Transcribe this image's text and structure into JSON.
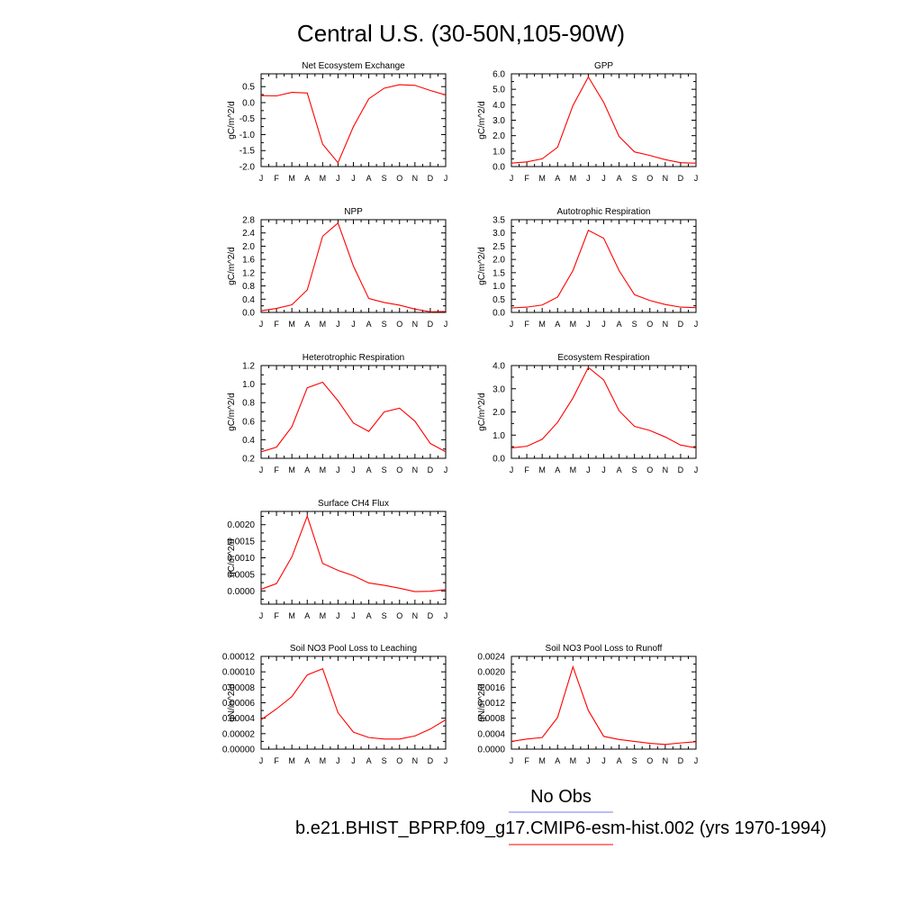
{
  "figure": {
    "title": "Central U.S. (30-50N,105-90W)",
    "month_labels": [
      "J",
      "F",
      "M",
      "A",
      "M",
      "J",
      "J",
      "A",
      "S",
      "O",
      "N",
      "D",
      "J"
    ],
    "legend": {
      "obs_label": "No Obs",
      "obs_color": "#7b7bf0",
      "model_label": "b.e21.BHIST_BPRP.f09_g17.CMIP6-esm-hist.002 (yrs 1970-1994)",
      "model_color": "#ff0000"
    }
  },
  "chart_data": [
    {
      "type": "line",
      "title": "Net Ecosystem Exchange",
      "ylabel": "gC/m^2/d",
      "ylim": [
        -2.0,
        0.9
      ],
      "yticks": [
        -2.0,
        -1.5,
        -1.0,
        -0.5,
        0.0,
        0.5
      ],
      "ytick_labels": [
        "-2.0",
        "-1.5",
        "-1.0",
        "-0.5",
        "0.0",
        "0.5"
      ],
      "grid": false,
      "series": [
        {
          "values": [
            0.22,
            0.21,
            0.32,
            0.3,
            -1.3,
            -1.88,
            -0.75,
            0.12,
            0.45,
            0.56,
            0.54,
            0.38,
            0.24
          ]
        }
      ]
    },
    {
      "type": "line",
      "title": "GPP",
      "ylabel": "gC/m^2/d",
      "ylim": [
        0.0,
        6.0
      ],
      "yticks": [
        0,
        1,
        2,
        3,
        4,
        5,
        6
      ],
      "ytick_labels": [
        "0.0",
        "1.0",
        "2.0",
        "3.0",
        "4.0",
        "5.0",
        "6.0"
      ],
      "grid": false,
      "series": [
        {
          "values": [
            0.22,
            0.3,
            0.5,
            1.25,
            3.95,
            5.8,
            4.15,
            1.95,
            0.95,
            0.72,
            0.45,
            0.25,
            0.22
          ]
        }
      ]
    },
    {
      "type": "line",
      "title": "NPP",
      "ylabel": "gC/m^2/d",
      "ylim": [
        0.0,
        2.8
      ],
      "yticks": [
        0,
        0.4,
        0.8,
        1.2,
        1.6,
        2.0,
        2.4,
        2.8
      ],
      "ytick_labels": [
        "0.0",
        "0.4",
        "0.8",
        "1.2",
        "1.6",
        "2.0",
        "2.4",
        "2.8"
      ],
      "grid": false,
      "series": [
        {
          "values": [
            0.05,
            0.12,
            0.23,
            0.68,
            2.3,
            2.7,
            1.4,
            0.42,
            0.3,
            0.22,
            0.1,
            0.02,
            0.03
          ]
        }
      ]
    },
    {
      "type": "line",
      "title": "Autotrophic Respiration",
      "ylabel": "gC/m^2/d",
      "ylim": [
        0.0,
        3.5
      ],
      "yticks": [
        0,
        0.5,
        1,
        1.5,
        2,
        2.5,
        3,
        3.5
      ],
      "ytick_labels": [
        "0.0",
        "0.5",
        "1.0",
        "1.5",
        "2.0",
        "2.5",
        "3.0",
        "3.5"
      ],
      "grid": false,
      "series": [
        {
          "values": [
            0.17,
            0.2,
            0.28,
            0.58,
            1.58,
            3.1,
            2.8,
            1.58,
            0.67,
            0.45,
            0.3,
            0.2,
            0.18
          ]
        }
      ]
    },
    {
      "type": "line",
      "title": "Heterotrophic Respiration",
      "ylabel": "gC/m^2/d",
      "ylim": [
        0.2,
        1.2
      ],
      "yticks": [
        0.2,
        0.4,
        0.6,
        0.8,
        1.0,
        1.2
      ],
      "ytick_labels": [
        "0.2",
        "0.4",
        "0.6",
        "0.8",
        "1.0",
        "1.2"
      ],
      "grid": false,
      "series": [
        {
          "values": [
            0.27,
            0.32,
            0.54,
            0.96,
            1.02,
            0.82,
            0.58,
            0.49,
            0.7,
            0.74,
            0.6,
            0.36,
            0.27
          ]
        }
      ]
    },
    {
      "type": "line",
      "title": "Ecosystem Respiration",
      "ylabel": "gC/m^2/d",
      "ylim": [
        0.0,
        4.0
      ],
      "yticks": [
        0,
        1,
        2,
        3,
        4
      ],
      "ytick_labels": [
        "0.0",
        "1.0",
        "2.0",
        "3.0",
        "4.0"
      ],
      "grid": false,
      "series": [
        {
          "values": [
            0.45,
            0.52,
            0.82,
            1.55,
            2.6,
            3.92,
            3.38,
            2.05,
            1.38,
            1.2,
            0.92,
            0.57,
            0.45
          ]
        }
      ]
    },
    {
      "type": "line",
      "title": "Surface CH4 Flux",
      "ylabel": "gC/m^2/d",
      "ylim": [
        -0.0004,
        0.0024
      ],
      "yticks": [
        0,
        0.0005,
        0.001,
        0.0015,
        0.002
      ],
      "ytick_labels": [
        "0.0000",
        "0.0005",
        "0.0010",
        "0.0015",
        "0.0020"
      ],
      "grid": false,
      "series": [
        {
          "values": [
            5e-05,
            0.00022,
            0.00103,
            0.00226,
            0.00083,
            0.00062,
            0.00046,
            0.00024,
            0.00017,
            8e-05,
            -2e-05,
            -1e-05,
            4e-05
          ]
        }
      ]
    },
    {
      "type": "line",
      "title": "Soil NO3 Pool Loss to Leaching",
      "ylabel": "gN/m^2/d",
      "ylim": [
        0.0,
        0.00012
      ],
      "yticks": [
        0,
        2e-05,
        4e-05,
        6e-05,
        8e-05,
        0.0001,
        0.00012
      ],
      "ytick_labels": [
        "0.00000",
        "0.00002",
        "0.00004",
        "0.00006",
        "0.00008",
        "0.00010",
        "0.00012"
      ],
      "grid": false,
      "series": [
        {
          "values": [
            3.8e-05,
            5.2e-05,
            6.8e-05,
            9.6e-05,
            0.000104,
            4.7e-05,
            2.2e-05,
            1.5e-05,
            1.3e-05,
            1.3e-05,
            1.7e-05,
            2.6e-05,
            3.8e-05
          ]
        }
      ]
    },
    {
      "type": "line",
      "title": "Soil NO3 Pool Loss to Runoff",
      "ylabel": "gN/m^2/d",
      "ylim": [
        0.0,
        0.0024
      ],
      "yticks": [
        0,
        0.0004,
        0.0008,
        0.0012,
        0.0016,
        0.002,
        0.0024
      ],
      "ytick_labels": [
        "0.0000",
        "0.0004",
        "0.0008",
        "0.0012",
        "0.0016",
        "0.0020",
        "0.0024"
      ],
      "grid": false,
      "series": [
        {
          "values": [
            0.0002,
            0.00026,
            0.0003,
            0.00082,
            0.00213,
            0.001,
            0.00033,
            0.00025,
            0.0002,
            0.00015,
            0.00012,
            0.00016,
            0.00019
          ]
        }
      ]
    }
  ]
}
